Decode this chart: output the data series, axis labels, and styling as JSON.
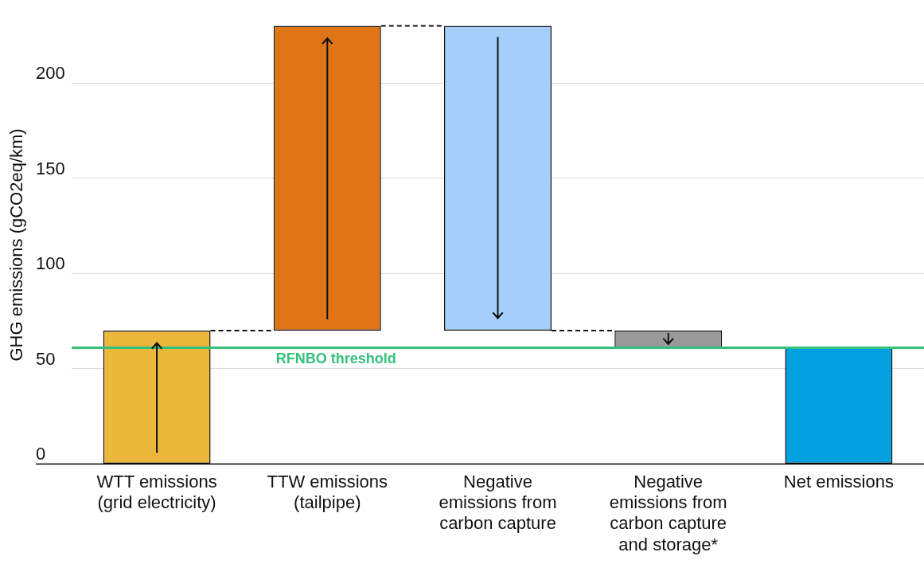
{
  "chart_data": {
    "type": "bar",
    "ylabel": "GHG emissions (gCO2eq/km)",
    "categories": [
      "WTT emissions (grid electricity)",
      "TTW emissions (tailpipe)",
      "Negative emissions from carbon capture",
      "Negative emissions from carbon capture and storage*",
      "Net emissions"
    ],
    "values": [
      70,
      160,
      -160,
      -9,
      61
    ],
    "base": [
      0,
      70,
      230,
      70,
      0
    ],
    "colors": [
      "#ecb83c",
      "#df7516",
      "#a4cffb",
      "#9a9a9a",
      "#00a0e1"
    ],
    "ylim": [
      0,
      230
    ],
    "yticks": [
      0,
      50,
      100,
      150,
      200
    ],
    "grid": "y",
    "legend": false,
    "ref_lines": [
      {
        "axis": "y",
        "value": 61,
        "label": "RFNBO threshold",
        "color": "#34c17b"
      }
    ]
  }
}
